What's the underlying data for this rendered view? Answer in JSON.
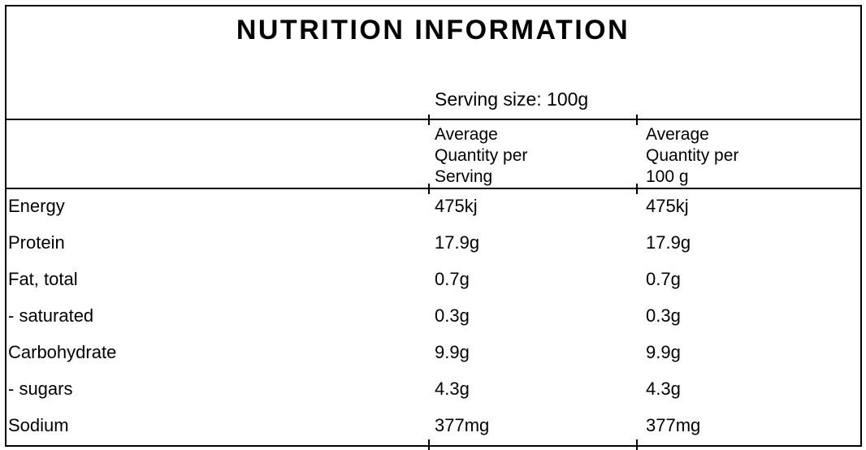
{
  "title": "NUTRITION INFORMATION",
  "serving_line": "Serving size: 100g",
  "columns": {
    "per_serving": {
      "lines": [
        "Average",
        "Quantity per",
        "Serving"
      ]
    },
    "per_100g": {
      "lines": [
        "Average",
        "Quantity per",
        "100 g"
      ]
    }
  },
  "rows": [
    {
      "label": "Energy",
      "per_serving": "475kj",
      "per_100g": "475kj"
    },
    {
      "label": "Protein",
      "per_serving": "17.9g",
      "per_100g": "17.9g"
    },
    {
      "label": "Fat, total",
      "per_serving": "0.7g",
      "per_100g": "0.7g"
    },
    {
      "label": "- saturated",
      "per_serving": "0.3g",
      "per_100g": "0.3g"
    },
    {
      "label": "Carbohydrate",
      "per_serving": "9.9g",
      "per_100g": "9.9g"
    },
    {
      "label": "- sugars",
      "per_serving": "4.3g",
      "per_100g": "4.3g"
    },
    {
      "label": "Sodium",
      "per_serving": "377mg",
      "per_100g": "377mg"
    }
  ],
  "colors": {
    "background": "#ffffff",
    "border": "#000000",
    "text": "#000000"
  }
}
